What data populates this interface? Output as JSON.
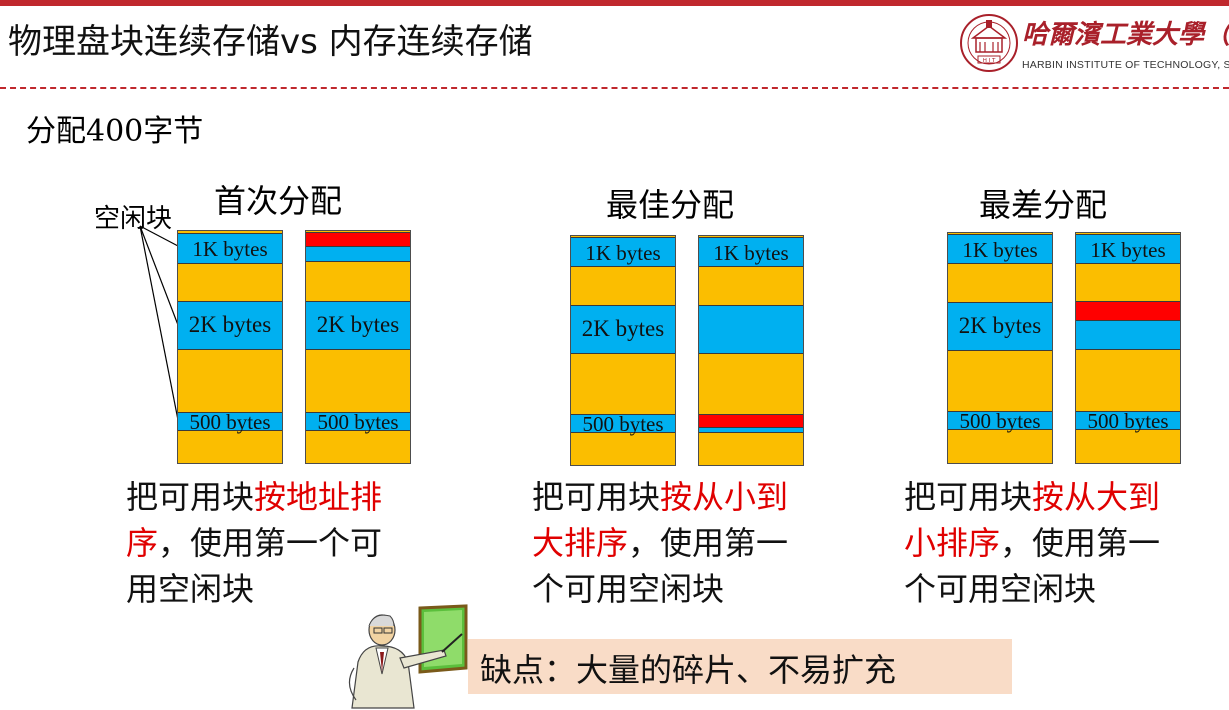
{
  "slide": {
    "title": "物理盘块连续存储vs 内存连续存储",
    "subtitle": "分配400字节",
    "free_block_label": "空闲块"
  },
  "logo": {
    "name": "哈爾濱工業大學（",
    "subtitle": "HARBIN INSTITUTE OF TECHNOLOGY, SH",
    "badge_text": "H I T"
  },
  "strategies": [
    {
      "title": "首次分配",
      "columns": [
        {
          "segments": [
            "1K bytes",
            "2K bytes",
            "500 bytes"
          ],
          "allocated_in": "1K bytes"
        },
        {
          "segments": [
            "",
            "2K bytes",
            "500 bytes"
          ]
        }
      ],
      "desc_plain": "把可用块",
      "desc_highlight": "按地址排序",
      "desc_rest": "，使用第一个可用空闲块",
      "desc_lines": [
        {
          "normal": "把可用块",
          "highlight": "按地址排"
        },
        {
          "highlight": "序",
          "normal": "，使用第一个可"
        },
        {
          "normal": "用空闲块"
        }
      ]
    },
    {
      "title": "最佳分配",
      "columns": [
        {
          "segments": [
            "1K bytes",
            "2K bytes",
            "500 bytes"
          ]
        },
        {
          "segments": [
            "1K bytes",
            "",
            ""
          ],
          "allocated_in": "500 bytes"
        }
      ],
      "desc_lines": [
        {
          "normal": "把可用块",
          "highlight": "按从小到"
        },
        {
          "highlight": "大排序",
          "normal": "，使用第一"
        },
        {
          "normal": "个可用空闲块"
        }
      ]
    },
    {
      "title": "最差分配",
      "columns": [
        {
          "segments": [
            "1K bytes",
            "2K bytes",
            "500 bytes"
          ]
        },
        {
          "segments": [
            "1K bytes",
            "",
            "500 bytes"
          ],
          "allocated_in": "2K bytes"
        }
      ],
      "desc_lines": [
        {
          "normal": "把可用块",
          "highlight": "按从大到"
        },
        {
          "highlight": "小排序",
          "normal": "，使用第一"
        },
        {
          "normal": "个可用空闲块"
        }
      ]
    }
  ],
  "note": {
    "text": "缺点：大量的碎片、不易扩充"
  },
  "colors": {
    "free_block": "#00b0f0",
    "used_block": "#fbbe00",
    "allocated": "#ff0000",
    "highlight_text": "#e00000",
    "accent": "#c0282d"
  }
}
